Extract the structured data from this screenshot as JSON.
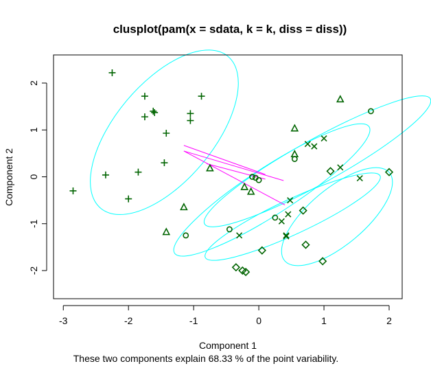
{
  "chart_data": {
    "type": "scatter",
    "title": "clusplot(pam(x = sdata, k = k, diss = diss))",
    "xlabel": "Component 1",
    "ylabel": "Component 2",
    "subtitle": "These two components explain 68.33 % of the point variability.",
    "xlim": [
      -3.15,
      2.2
    ],
    "ylim": [
      -2.6,
      2.6
    ],
    "x_ticks": [
      -3,
      -2,
      -1,
      0,
      1,
      2
    ],
    "y_ticks": [
      -2,
      -1,
      0,
      1,
      2
    ],
    "point_color": "#006400",
    "ellipse_color": "#00FFFF",
    "line_color": "#FF00FF",
    "ellipses": [
      {
        "cx": -1.45,
        "cy": 0.95,
        "rx": 1.52,
        "ry": 1.05,
        "angle_deg": 50
      },
      {
        "cx": 0.2,
        "cy": -0.28,
        "rx": 1.78,
        "ry": 0.5,
        "angle_deg": 33
      },
      {
        "cx": 0.9,
        "cy": 0.33,
        "rx": 1.98,
        "ry": 0.47,
        "angle_deg": 29
      },
      {
        "cx": 0.52,
        "cy": -0.85,
        "rx": 1.48,
        "ry": 0.37,
        "angle_deg": 25
      },
      {
        "cx": 1.2,
        "cy": -0.85,
        "rx": 1.05,
        "ry": 0.6,
        "angle_deg": 40
      }
    ],
    "connector_lines": [
      {
        "x1": -1.15,
        "y1": 0.67,
        "x2": 0.1,
        "y2": 0.05
      },
      {
        "x1": -1.15,
        "y1": 0.55,
        "x2": 0.4,
        "y2": -0.6
      },
      {
        "x1": -1.15,
        "y1": 0.55,
        "x2": 0.38,
        "y2": -0.08
      },
      {
        "x1": -0.8,
        "y1": 0.28,
        "x2": 0.1,
        "y2": -0.05
      }
    ],
    "series": [
      {
        "symbol": "plus",
        "points": [
          [
            -2.25,
            2.22
          ],
          [
            -1.75,
            1.72
          ],
          [
            -1.62,
            1.4
          ],
          [
            -1.6,
            1.37
          ],
          [
            -1.75,
            1.28
          ],
          [
            -0.88,
            1.72
          ],
          [
            -1.05,
            1.35
          ],
          [
            -1.05,
            1.2
          ],
          [
            -1.42,
            0.93
          ],
          [
            -1.45,
            0.3
          ],
          [
            -1.85,
            0.1
          ],
          [
            -2.35,
            0.04
          ],
          [
            -2.0,
            -0.47
          ],
          [
            -2.85,
            -0.3
          ]
        ]
      },
      {
        "symbol": "triangle",
        "points": [
          [
            1.25,
            1.65
          ],
          [
            0.55,
            1.03
          ],
          [
            0.55,
            0.48
          ],
          [
            -0.75,
            0.18
          ],
          [
            -0.22,
            -0.22
          ],
          [
            -0.12,
            -0.32
          ],
          [
            -1.15,
            -0.65
          ],
          [
            -1.42,
            -1.18
          ]
        ]
      },
      {
        "symbol": "circle",
        "points": [
          [
            1.72,
            1.4
          ],
          [
            0.55,
            0.38
          ],
          [
            -0.1,
            0.0
          ],
          [
            -0.05,
            -0.02
          ],
          [
            0.0,
            -0.07
          ],
          [
            0.25,
            -0.87
          ],
          [
            -0.45,
            -1.12
          ],
          [
            -1.12,
            -1.25
          ]
        ]
      },
      {
        "symbol": "cross",
        "points": [
          [
            0.75,
            0.7
          ],
          [
            0.85,
            0.65
          ],
          [
            1.0,
            0.82
          ],
          [
            1.25,
            0.2
          ],
          [
            1.55,
            -0.03
          ],
          [
            0.48,
            -0.5
          ],
          [
            0.35,
            -0.95
          ],
          [
            0.45,
            -0.8
          ],
          [
            0.42,
            -1.25
          ],
          [
            0.42,
            -1.27
          ],
          [
            -0.3,
            -1.25
          ]
        ]
      },
      {
        "symbol": "diamond",
        "points": [
          [
            2.0,
            0.1
          ],
          [
            1.1,
            0.12
          ],
          [
            0.68,
            -0.72
          ],
          [
            0.72,
            -1.45
          ],
          [
            0.05,
            -1.57
          ],
          [
            0.98,
            -1.8
          ],
          [
            -0.35,
            -1.93
          ],
          [
            -0.25,
            -2.0
          ],
          [
            -0.2,
            -2.03
          ]
        ]
      }
    ]
  }
}
